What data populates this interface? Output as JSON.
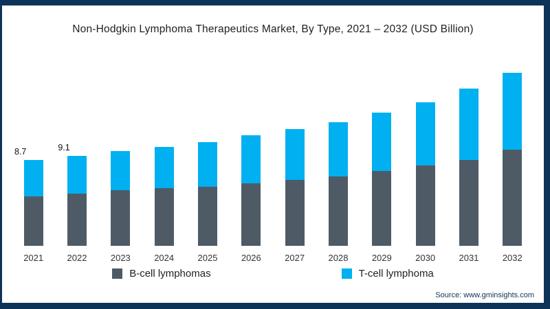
{
  "title": "Non-Hodgkin Lymphoma Therapeutics Market, By Type, 2021 – 2032 (USD Billion)",
  "source": "Source: www.gminsights.com",
  "colors": {
    "b_cell": "#4e5b66",
    "t_cell": "#00b0f0",
    "frame": "#0e3358"
  },
  "legend": [
    {
      "label": "B-cell lymphomas",
      "color_key": "b_cell"
    },
    {
      "label": "T-cell lymphoma",
      "color_key": "t_cell"
    }
  ],
  "chart_data": {
    "type": "bar",
    "stacked": true,
    "title": "Non-Hodgkin Lymphoma Therapeutics Market, By Type, 2021 – 2032 (USD Billion)",
    "categories": [
      "2021",
      "2022",
      "2023",
      "2024",
      "2025",
      "2026",
      "2027",
      "2028",
      "2029",
      "2030",
      "2031",
      "2032"
    ],
    "series": [
      {
        "name": "B-cell lymphomas",
        "color_key": "b_cell",
        "values": [
          5.0,
          5.3,
          5.6,
          5.8,
          6.0,
          6.3,
          6.7,
          7.0,
          7.6,
          8.1,
          8.7,
          9.7
        ]
      },
      {
        "name": "T-cell lymphoma",
        "color_key": "t_cell",
        "values": [
          3.7,
          3.8,
          4.0,
          4.2,
          4.5,
          4.9,
          5.1,
          5.5,
          5.9,
          6.4,
          7.2,
          7.8
        ]
      }
    ],
    "totals": [
      8.7,
      9.1,
      9.6,
      10.0,
      10.5,
      11.2,
      11.8,
      12.5,
      13.5,
      14.5,
      15.9,
      17.5
    ],
    "data_labels": {
      "2021": "8.7",
      "2022": "9.1"
    },
    "ylim": [
      0,
      18
    ],
    "grid": false,
    "legend_position": "bottom"
  }
}
